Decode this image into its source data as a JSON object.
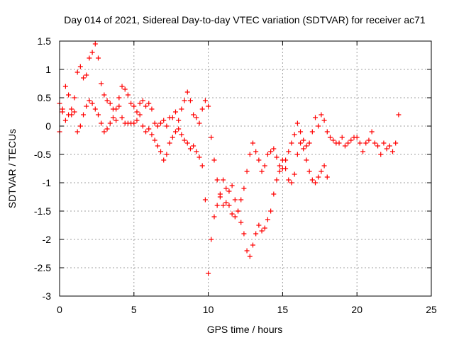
{
  "chart_data": {
    "type": "scatter",
    "title": "Day 014 of 2021, Sidereal Day-to-day VTEC variation (SDTVAR) for receiver ac71",
    "xlabel": "GPS time / hours",
    "ylabel": "SDTVAR / TECUs",
    "xlim": [
      0,
      25
    ],
    "ylim": [
      -3,
      1.5
    ],
    "xticks": [
      0,
      5,
      10,
      15,
      20,
      25
    ],
    "yticks": [
      -3,
      -2.5,
      -2,
      -1.5,
      -1,
      -0.5,
      0,
      0.5,
      1,
      1.5
    ],
    "xtick_labels": [
      "0",
      "5",
      "10",
      "15",
      "20",
      "25"
    ],
    "ytick_labels": [
      "-3",
      "-2.5",
      "-2",
      "-1.5",
      "-1",
      "-0.5",
      "0",
      "0.5",
      "1",
      "1.5"
    ],
    "grid": true,
    "marker": "+",
    "series": [
      {
        "name": "SDTVAR",
        "color": "#ff0000",
        "x": [
          0.0,
          0.2,
          0.4,
          0.6,
          0.8,
          1.0,
          1.2,
          1.4,
          1.6,
          1.8,
          2.0,
          2.2,
          2.4,
          2.6,
          2.8,
          3.0,
          3.2,
          3.4,
          3.6,
          3.8,
          4.0,
          4.2,
          4.4,
          4.6,
          4.8,
          5.0,
          5.2,
          5.4,
          5.6,
          5.8,
          6.0,
          6.2,
          6.4,
          6.6,
          6.8,
          7.0,
          7.2,
          7.4,
          7.6,
          7.8,
          8.0,
          8.2,
          8.4,
          8.6,
          8.8,
          9.0,
          9.2,
          9.4,
          9.6,
          9.8,
          10.0,
          10.2,
          10.4,
          10.6,
          10.8,
          11.0,
          11.2,
          11.4,
          11.6,
          11.8,
          12.0,
          12.2,
          12.4,
          12.6,
          12.8,
          13.0,
          13.2,
          13.4,
          13.6,
          13.8,
          14.0,
          14.2,
          14.4,
          14.6,
          14.8,
          15.0,
          15.2,
          15.4,
          15.6,
          15.8,
          16.0,
          16.2,
          16.4,
          16.6,
          16.8,
          17.0,
          17.2,
          17.4,
          17.6,
          17.8,
          18.0,
          18.2,
          18.4,
          18.6,
          18.8,
          19.0,
          19.2,
          19.4,
          19.6,
          19.8,
          20.0,
          20.2,
          20.4,
          20.6,
          20.8,
          21.0,
          21.2,
          21.4,
          21.6,
          21.8,
          22.0,
          22.2,
          22.4,
          22.6,
          22.8,
          0.0,
          0.2,
          0.4,
          0.6,
          0.8,
          1.0,
          1.2,
          1.4,
          1.6,
          1.8,
          2.0,
          2.2,
          2.4,
          2.6,
          2.8,
          3.0,
          3.2,
          3.4,
          3.6,
          3.8,
          4.0,
          4.2,
          4.4,
          4.6,
          4.8,
          5.0,
          5.2,
          5.4,
          5.6,
          5.8,
          6.0,
          6.2,
          6.4,
          6.6,
          6.8,
          7.0,
          7.2,
          7.4,
          7.6,
          7.8,
          8.0,
          8.2,
          8.4,
          8.6,
          8.8,
          9.0,
          9.2,
          9.4,
          9.6,
          9.8,
          10.0,
          10.2,
          10.4,
          10.6,
          10.8,
          11.0,
          11.2,
          11.4,
          11.6,
          11.8,
          12.0,
          12.2,
          12.4,
          12.6,
          12.8,
          13.0,
          13.2,
          13.4,
          13.6,
          13.8,
          14.0,
          14.2,
          14.4,
          14.6,
          14.8,
          15.0,
          15.2,
          15.4,
          15.6,
          15.8,
          16.0,
          16.2,
          16.4,
          16.6,
          16.8,
          17.0,
          17.2,
          17.4,
          17.6,
          17.8,
          18.0
        ],
        "y": [
          -0.1,
          0.3,
          0.7,
          0.55,
          0.2,
          0.5,
          0.95,
          1.05,
          0.85,
          0.9,
          1.2,
          1.3,
          1.45,
          1.2,
          0.75,
          0.55,
          0.45,
          0.4,
          0.3,
          0.1,
          0.35,
          0.15,
          0.05,
          0.05,
          0.05,
          0.05,
          0.1,
          0.4,
          0.45,
          0.35,
          0.4,
          0.3,
          0.05,
          0.0,
          0.05,
          0.1,
          0.0,
          0.15,
          0.15,
          0.25,
          0.1,
          0.3,
          0.45,
          0.6,
          0.45,
          0.2,
          0.15,
          0.05,
          0.3,
          0.45,
          0.35,
          -0.2,
          -0.6,
          -0.95,
          -1.25,
          -1.4,
          -1.35,
          -1.15,
          -1.05,
          -1.3,
          -1.5,
          -1.7,
          -1.9,
          -2.2,
          -2.3,
          -2.1,
          -1.9,
          -1.75,
          -1.85,
          -1.8,
          -1.65,
          -1.5,
          -1.2,
          -0.95,
          -0.8,
          -0.6,
          -0.75,
          -0.95,
          -1.0,
          -0.85,
          -0.5,
          -0.3,
          -0.25,
          -0.35,
          -0.3,
          -0.1,
          0.15,
          0.0,
          0.2,
          0.1,
          -0.1,
          -0.2,
          -0.25,
          -0.3,
          -0.3,
          -0.2,
          -0.35,
          -0.3,
          -0.25,
          -0.2,
          -0.2,
          -0.3,
          -0.45,
          -0.3,
          -0.25,
          -0.1,
          -0.3,
          -0.35,
          -0.5,
          -0.3,
          -0.4,
          -0.35,
          -0.45,
          -0.3,
          0.2,
          0.4,
          0.25,
          0.1,
          0.2,
          0.3,
          0.25,
          -0.1,
          0.0,
          0.2,
          0.35,
          0.45,
          0.4,
          0.3,
          0.2,
          0.05,
          -0.1,
          -0.05,
          0.05,
          0.15,
          0.3,
          0.5,
          0.7,
          0.65,
          0.55,
          0.4,
          0.35,
          0.25,
          0.2,
          0.0,
          -0.1,
          -0.05,
          -0.15,
          -0.25,
          -0.35,
          -0.45,
          -0.6,
          -0.5,
          -0.3,
          -0.2,
          -0.1,
          -0.05,
          -0.15,
          -0.25,
          -0.3,
          -0.4,
          -0.35,
          -0.45,
          -0.55,
          -0.7,
          -1.3,
          -2.6,
          -2.0,
          -1.6,
          -1.4,
          -1.2,
          -0.95,
          -1.1,
          -1.4,
          -1.55,
          -1.6,
          -1.5,
          -1.3,
          -1.1,
          -0.8,
          -0.5,
          -0.3,
          -0.45,
          -0.6,
          -0.8,
          -0.7,
          -0.5,
          -0.45,
          -0.4,
          -0.55,
          -0.7,
          -0.75,
          -0.6,
          -0.45,
          -0.3,
          -0.15,
          0.05,
          -0.1,
          -0.4,
          -0.6,
          -0.8,
          -0.95,
          -1.0,
          -0.9,
          -0.8,
          -0.7,
          -0.9
        ]
      }
    ]
  }
}
